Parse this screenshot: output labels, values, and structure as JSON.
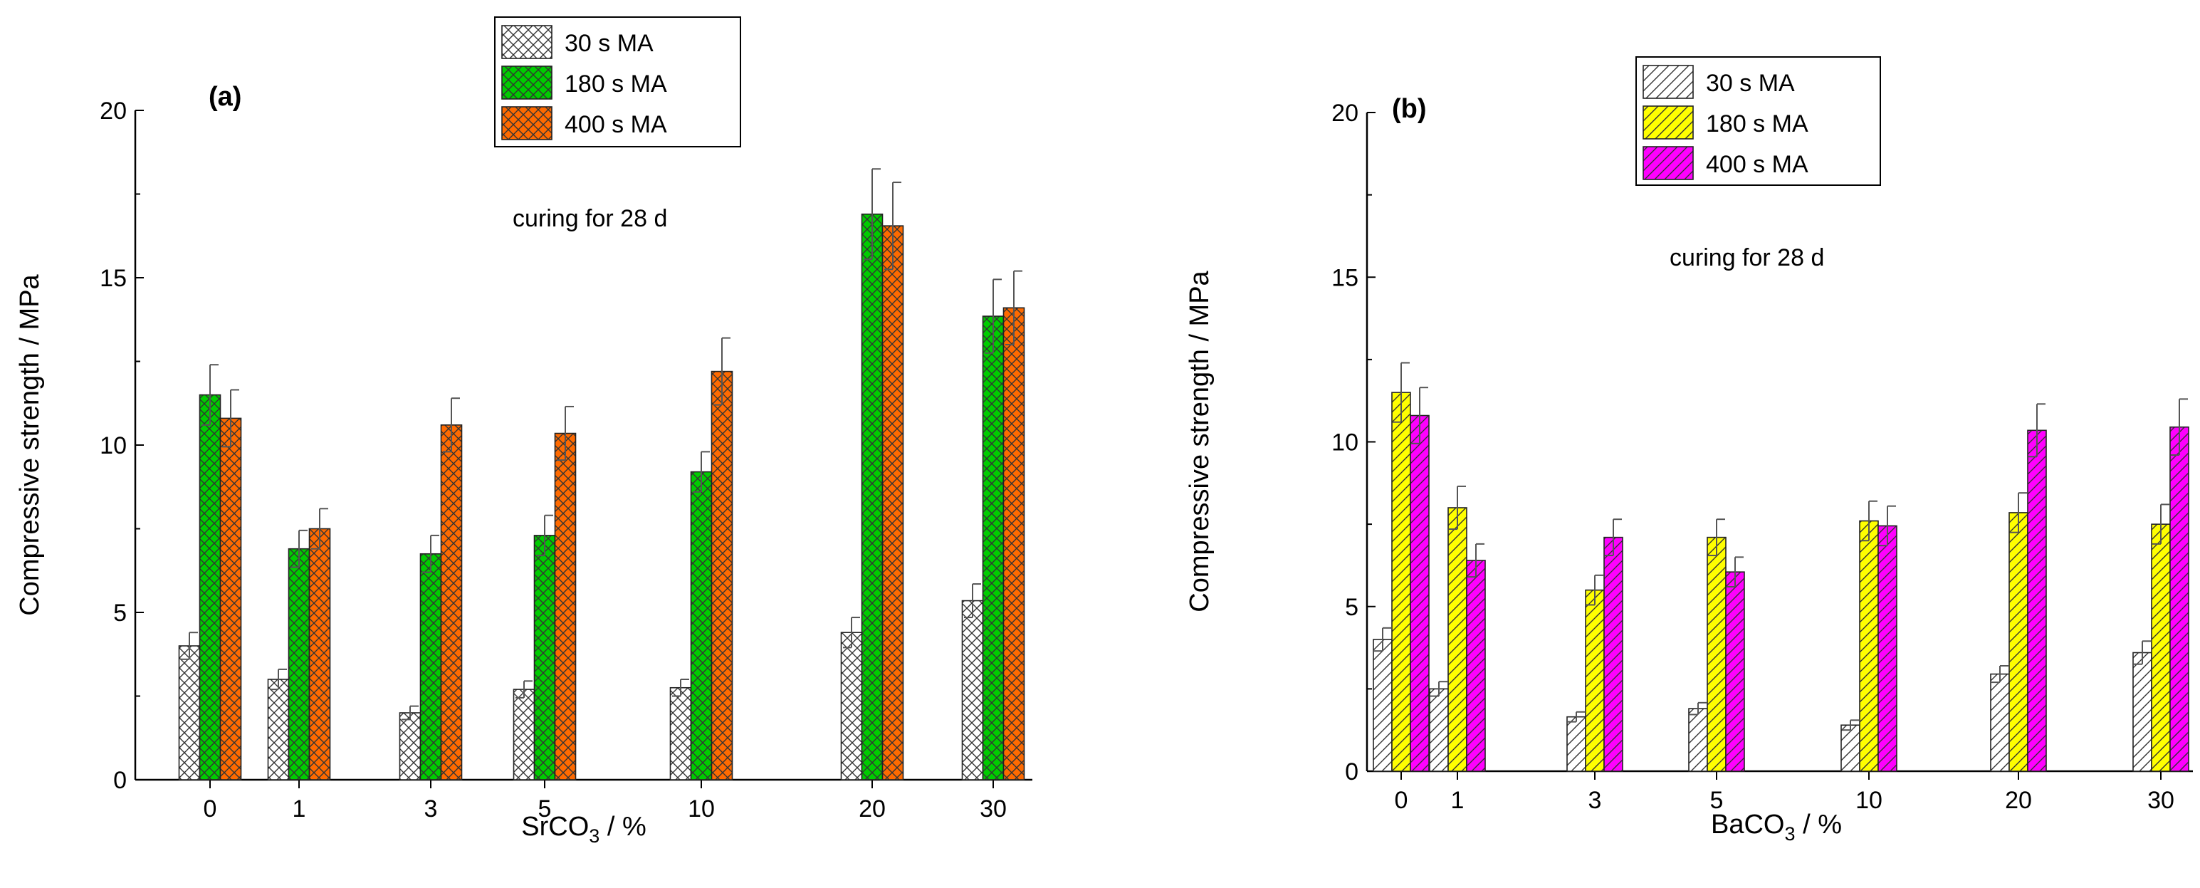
{
  "chart_data": [
    {
      "type": "bar",
      "panel_label": "(a)",
      "annotation": "curing for 28 d",
      "xlabel": {
        "main": "SrCO",
        "sub": "3",
        "tail": " / %"
      },
      "ylabel": "Compressive strength / MPa",
      "ylim": [
        0,
        20
      ],
      "yticks": [
        "0",
        "5",
        "10",
        "15",
        "20"
      ],
      "categories": [
        "0",
        "1",
        "3",
        "5",
        "10",
        "20",
        "30"
      ],
      "series": [
        {
          "name": "30 s MA",
          "fill": "#ffffff",
          "pattern": "cross",
          "values": [
            4.0,
            3.0,
            2.0,
            2.7,
            2.75,
            4.4,
            5.35
          ],
          "errors": [
            0.4,
            0.3,
            0.2,
            0.25,
            0.25,
            0.45,
            0.5
          ]
        },
        {
          "name": "180 s MA",
          "fill": "#00cc00",
          "pattern": "cross",
          "values": [
            11.5,
            6.9,
            6.75,
            7.3,
            9.2,
            16.9,
            13.85
          ],
          "errors": [
            0.9,
            0.55,
            0.55,
            0.6,
            0.6,
            1.35,
            1.1
          ]
        },
        {
          "name": "400 s MA",
          "fill": "#ff6a00",
          "pattern": "cross",
          "values": [
            10.8,
            7.5,
            10.6,
            10.35,
            12.2,
            16.55,
            14.1
          ],
          "errors": [
            0.85,
            0.6,
            0.8,
            0.8,
            1.0,
            1.3,
            1.1
          ]
        }
      ]
    },
    {
      "type": "bar",
      "panel_label": "(b)",
      "annotation": "curing for 28 d",
      "xlabel": {
        "main": "BaCO",
        "sub": "3",
        "tail": " / %"
      },
      "ylabel": "Compressive strength / MPa",
      "ylim": [
        0,
        20
      ],
      "yticks": [
        "0",
        "5",
        "10",
        "15",
        "20"
      ],
      "categories": [
        "0",
        "1",
        "3",
        "5",
        "10",
        "20",
        "30"
      ],
      "series": [
        {
          "name": "30 s MA",
          "fill": "#ffffff",
          "pattern": "diag",
          "values": [
            4.0,
            2.5,
            1.65,
            1.9,
            1.4,
            2.95,
            3.6
          ],
          "errors": [
            0.35,
            0.22,
            0.15,
            0.18,
            0.15,
            0.25,
            0.35
          ]
        },
        {
          "name": "180 s MA",
          "fill": "#ffff00",
          "pattern": "diag",
          "values": [
            11.5,
            8.0,
            5.5,
            7.1,
            7.6,
            7.85,
            7.5
          ],
          "errors": [
            0.9,
            0.65,
            0.45,
            0.55,
            0.6,
            0.6,
            0.6
          ]
        },
        {
          "name": "400 s MA",
          "fill": "#ff00ff",
          "pattern": "diag",
          "values": [
            10.8,
            6.4,
            7.1,
            6.05,
            7.45,
            10.35,
            10.45
          ],
          "errors": [
            0.85,
            0.5,
            0.55,
            0.45,
            0.6,
            0.8,
            0.85
          ]
        }
      ]
    }
  ]
}
